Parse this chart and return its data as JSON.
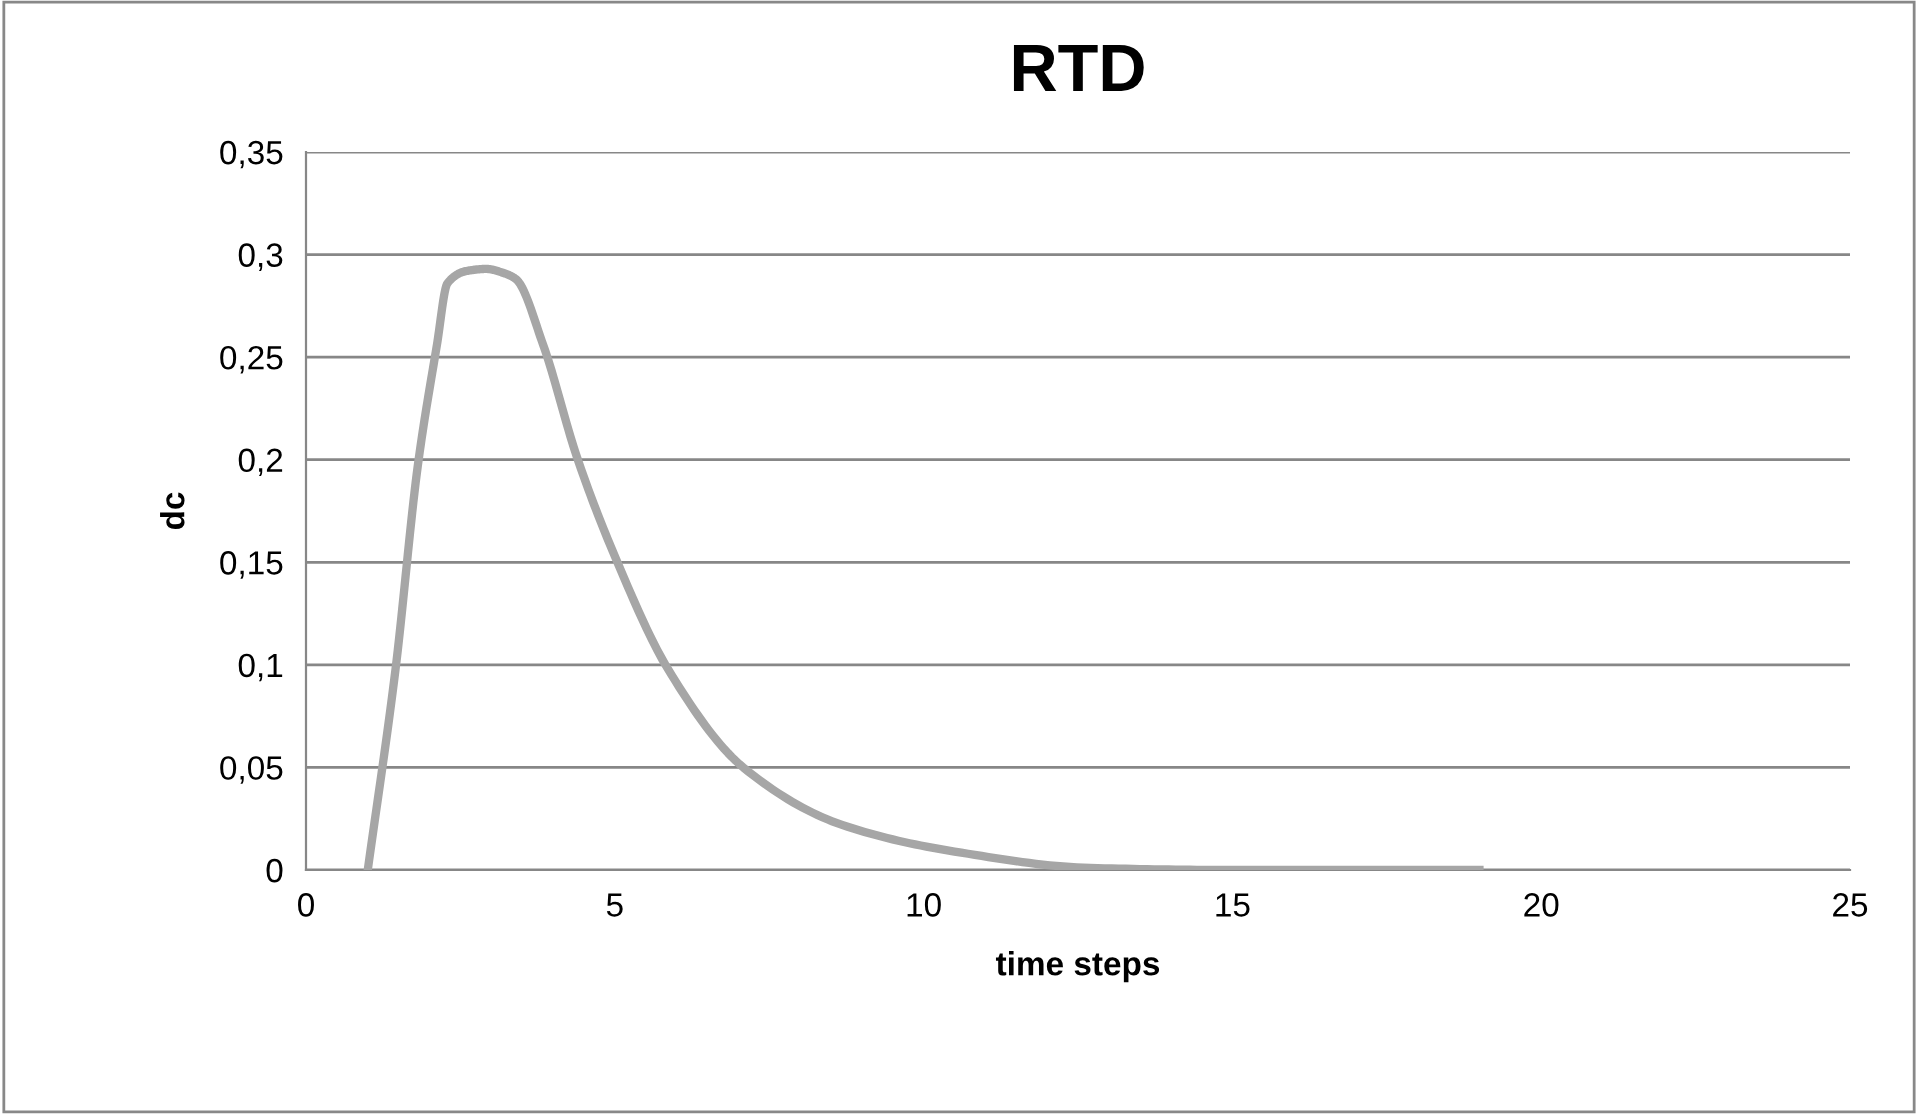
{
  "chart_data": {
    "type": "line",
    "title": "RTD",
    "xlabel": "time steps",
    "ylabel": "dc",
    "x": [
      1,
      1.45,
      1.81,
      2.12,
      2.29,
      2.6,
      2.92,
      3.2,
      3.4,
      3.84,
      4.39,
      5.0,
      5.86,
      7.08,
      8.68,
      10.5,
      12.7,
      15,
      19
    ],
    "series": [
      {
        "color": "#a6a6a6",
        "values": [
          0,
          0.098,
          0.197,
          0.256,
          0.286,
          0.292,
          0.293,
          0.291,
          0.288,
          0.256,
          0.201,
          0.153,
          0.098,
          0.05,
          0.022,
          0.009,
          0.001,
          0,
          0
        ]
      }
    ],
    "xlim": [
      0,
      25
    ],
    "xticks": [
      0,
      5,
      10,
      15,
      20,
      25
    ],
    "ylim": [
      0,
      0.35
    ],
    "yticks": [
      {
        "value": 0,
        "label": "0"
      },
      {
        "value": 0.05,
        "label": "0,05"
      },
      {
        "value": 0.1,
        "label": "0,1"
      },
      {
        "value": 0.15,
        "label": "0,15"
      },
      {
        "value": 0.2,
        "label": "0,2"
      },
      {
        "value": 0.25,
        "label": "0,25"
      },
      {
        "value": 0.3,
        "label": "0,3"
      },
      {
        "value": 0.35,
        "label": "0,35"
      }
    ],
    "grid": "y",
    "legend": false,
    "marker": "none",
    "line_style": "solid"
  }
}
